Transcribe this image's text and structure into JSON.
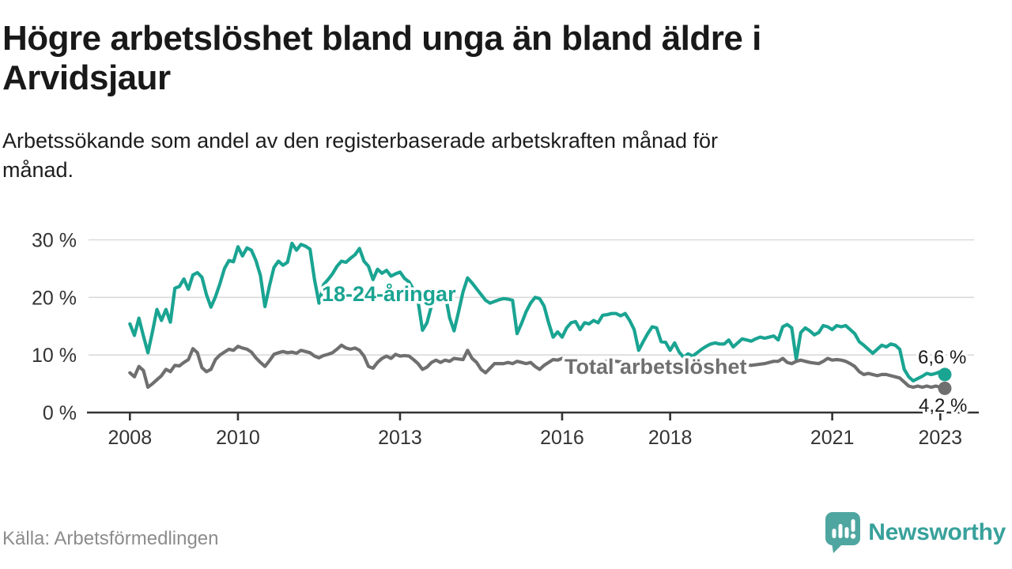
{
  "header": {
    "title_lines": [
      "Högre arbetslöshet bland unga än bland äldre i",
      "Arvidsjaur"
    ],
    "subtitle_lines": [
      "Arbetssökande som andel av den registerbaserade arbetskraften månad för",
      "månad."
    ]
  },
  "footer": {
    "source": "Källa: Arbetsförmedlingen",
    "brand_name": "Newsworthy",
    "brand_color": "#38a19b",
    "brand_icon_color": "#4fa6a0"
  },
  "chart_data": {
    "type": "line",
    "title": "Högre arbetslöshet bland unga än bland äldre i Arvidsjaur",
    "subtitle": "Arbetssökande som andel av den registerbaserade arbetskraften månad för månad.",
    "unit": "%",
    "frequency": "monthly",
    "x_start": "2008-01",
    "x_end": "2023-02",
    "ylim": [
      0,
      32
    ],
    "grid": "horizontal",
    "legend": "inline-labels",
    "y_ticks": [
      0,
      10,
      20,
      30
    ],
    "y_tick_labels": [
      "0 %",
      "10 %",
      "20 %",
      "30 %"
    ],
    "x_tick_years": [
      2008,
      2010,
      2013,
      2016,
      2018,
      2021,
      2023
    ],
    "x_tick_labels": [
      "2008",
      "2010",
      "2013",
      "2016",
      "2018",
      "2021",
      "2023"
    ],
    "axis_color": "#333333",
    "gridline_color": "#dadada",
    "series": [
      {
        "name": "18-24-åringar",
        "color": "#1aa492",
        "end_value": 6.6,
        "end_label": "6,6 %",
        "values": [
          15.4,
          13.4,
          16.4,
          13.3,
          10.4,
          14.0,
          17.9,
          16.0,
          17.9,
          15.7,
          21.6,
          21.9,
          23.2,
          21.4,
          23.9,
          24.3,
          23.5,
          20.5,
          18.3,
          20.1,
          22.4,
          25.0,
          26.4,
          26.2,
          28.8,
          27.2,
          28.6,
          28.2,
          26.4,
          23.8,
          18.4,
          22.0,
          25.2,
          26.3,
          25.6,
          26.1,
          29.4,
          28.2,
          29.2,
          28.9,
          28.4,
          23.1,
          19.0,
          22.2,
          23.1,
          24.1,
          25.4,
          26.3,
          26.1,
          26.8,
          27.4,
          28.5,
          26.3,
          25.4,
          23.1,
          24.9,
          24.2,
          24.7,
          23.7,
          24.1,
          24.4,
          23.3,
          22.7,
          21.4,
          19.4,
          14.3,
          15.6,
          18.6,
          20.1,
          20.4,
          20.8,
          16.5,
          14.2,
          17.5,
          21.0,
          23.4,
          22.5,
          21.5,
          20.5,
          19.5,
          19.0,
          19.3,
          19.6,
          19.8,
          19.7,
          19.5,
          13.7,
          15.5,
          17.5,
          19.0,
          20.0,
          19.8,
          18.5,
          15.6,
          13.1,
          14.0,
          13.1,
          14.7,
          15.6,
          15.8,
          14.4,
          15.6,
          15.4,
          16.0,
          15.6,
          16.9,
          17.0,
          17.2,
          17.2,
          16.8,
          17.2,
          16.0,
          14.4,
          10.8,
          12.3,
          13.7,
          14.9,
          14.7,
          12.3,
          12.2,
          10.8,
          12.1,
          10.5,
          9.6,
          10.2,
          9.8,
          10.4,
          11.0,
          11.5,
          11.9,
          12.1,
          11.9,
          11.9,
          12.6,
          11.4,
          12.1,
          12.8,
          12.6,
          12.4,
          12.8,
          13.1,
          12.9,
          13.1,
          13.3,
          12.6,
          14.9,
          15.3,
          14.7,
          9.2,
          13.9,
          14.7,
          14.2,
          13.5,
          13.9,
          15.1,
          14.9,
          14.4,
          15.1,
          14.9,
          15.1,
          14.4,
          13.7,
          12.3,
          11.7,
          11.0,
          10.3,
          11.0,
          11.7,
          11.4,
          11.9,
          11.7,
          11.0,
          7.5,
          6.2,
          5.5,
          5.9,
          6.3,
          6.8,
          6.6,
          6.8,
          7.1,
          6.6
        ]
      },
      {
        "name": "Total arbetslöshet",
        "color": "#6f6f6f",
        "end_value": 4.2,
        "end_label": "4,2 %",
        "values": [
          6.9,
          6.2,
          8.0,
          7.3,
          4.4,
          5.0,
          5.7,
          6.4,
          7.5,
          7.1,
          8.2,
          8.1,
          8.7,
          9.2,
          11.1,
          10.4,
          7.8,
          7.1,
          7.5,
          9.2,
          10.0,
          10.5,
          11.0,
          10.8,
          11.5,
          11.2,
          11.0,
          10.5,
          9.5,
          8.7,
          8.0,
          9.0,
          10.1,
          10.4,
          10.6,
          10.4,
          10.5,
          10.3,
          10.8,
          10.6,
          10.4,
          9.8,
          9.5,
          9.9,
          10.1,
          10.4,
          11.0,
          11.7,
          11.2,
          11.0,
          11.2,
          10.8,
          9.8,
          8.0,
          7.7,
          8.7,
          9.4,
          9.8,
          9.4,
          10.1,
          9.8,
          9.9,
          9.8,
          9.2,
          8.5,
          7.5,
          7.9,
          8.7,
          9.1,
          8.7,
          9.1,
          8.9,
          9.4,
          9.3,
          9.2,
          10.8,
          9.4,
          8.7,
          7.5,
          6.9,
          7.7,
          8.5,
          8.5,
          8.5,
          8.7,
          8.5,
          8.9,
          8.7,
          8.5,
          8.7,
          8.0,
          7.5,
          8.2,
          8.7,
          9.2,
          9.1,
          9.4,
          9.2,
          9.0,
          8.9,
          8.8,
          8.6,
          8.5,
          8.6,
          8.7,
          8.8,
          8.9,
          9.0,
          8.9,
          8.8,
          8.6,
          8.4,
          8.2,
          8.0,
          7.9,
          8.0,
          8.2,
          8.3,
          8.4,
          8.5,
          8.4,
          8.3,
          8.2,
          8.0,
          7.9,
          7.8,
          7.9,
          8.0,
          8.1,
          8.2,
          8.1,
          8.2,
          8.2,
          8.1,
          8.0,
          8.1,
          8.2,
          8.3,
          8.2,
          8.3,
          8.4,
          8.5,
          8.7,
          8.9,
          8.9,
          9.4,
          8.7,
          8.5,
          8.9,
          9.1,
          8.9,
          8.7,
          8.6,
          8.5,
          8.9,
          9.4,
          9.1,
          9.2,
          9.1,
          8.9,
          8.5,
          8.0,
          7.1,
          6.6,
          6.8,
          6.6,
          6.4,
          6.6,
          6.6,
          6.4,
          6.2,
          6.0,
          5.3,
          4.6,
          4.4,
          4.6,
          4.4,
          4.6,
          4.4,
          4.6,
          4.4,
          4.2
        ]
      }
    ]
  }
}
